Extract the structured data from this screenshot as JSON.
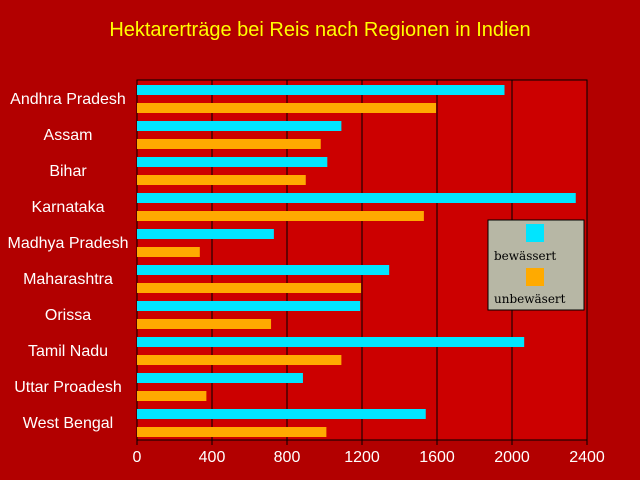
{
  "chart_data": {
    "type": "bar",
    "orientation": "horizontal",
    "title": "Hektarerträge bei Reis nach Regionen in Indien",
    "categories": [
      "Andhra Pradesh",
      "Assam",
      "Bihar",
      "Karnataka",
      "Madhya Pradesh",
      "Maharashtra",
      "Orissa",
      "Tamil Nadu",
      "Uttar Proadesh",
      "West Bengal"
    ],
    "series": [
      {
        "name": "bewässert",
        "color": "#00e5ff",
        "values": [
          1960,
          1090,
          1015,
          2340,
          730,
          1345,
          1190,
          2065,
          885,
          1540
        ]
      },
      {
        "name": "unbewäsert",
        "color": "#ffaa00",
        "values": [
          1595,
          980,
          900,
          1530,
          335,
          1195,
          715,
          1090,
          370,
          1010
        ]
      }
    ],
    "xlim": [
      0,
      2400
    ],
    "xticks": [
      "0",
      "400",
      "800",
      "1200",
      "1600",
      "2000",
      "2400"
    ],
    "grid": true,
    "legend_position": "right"
  },
  "colors": {
    "background": "#b20000",
    "plot_background": "#cc0000",
    "title": "#ffff00",
    "legend_background": "#b7b7a5"
  }
}
